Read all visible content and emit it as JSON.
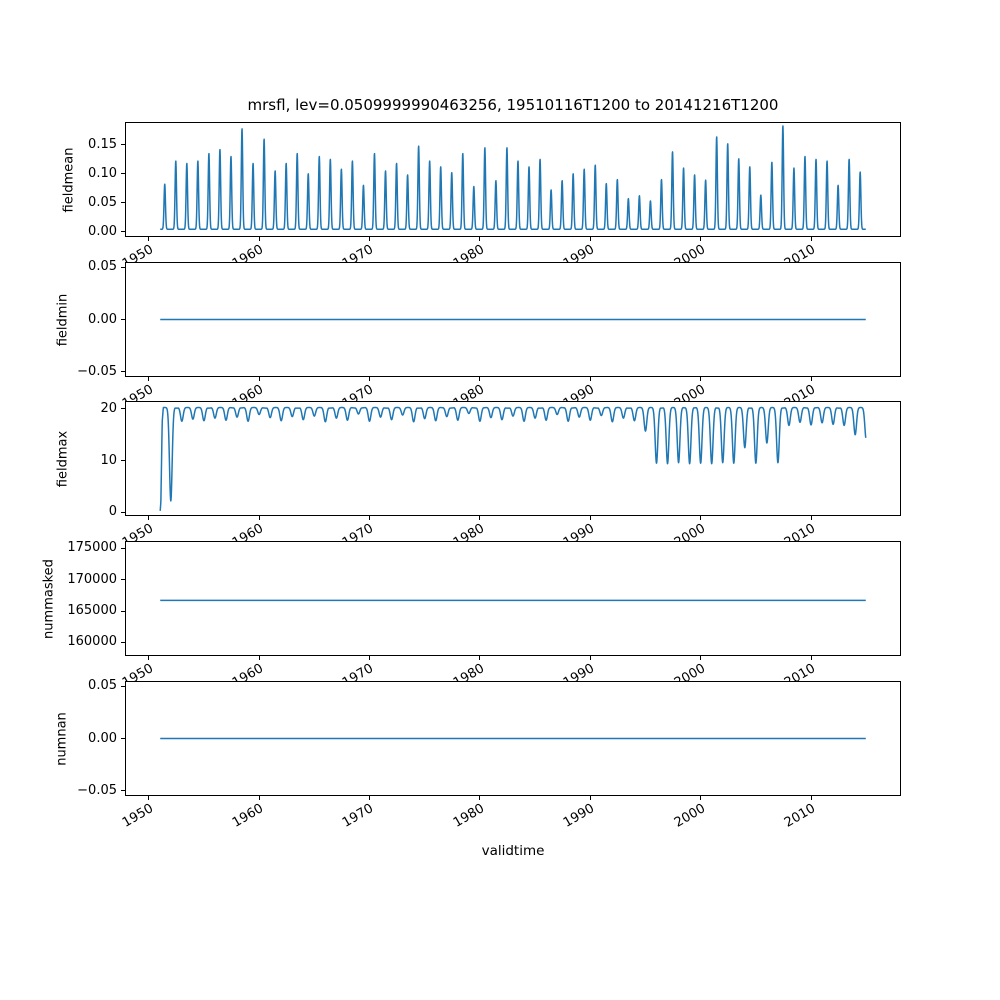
{
  "figure": {
    "title": "mrsfl, lev=0.0509999990463256, 19510116T1200 to 20141216T1200",
    "xlabel": "validtime",
    "line_color": "#1f77b4",
    "axis_color": "#000000",
    "background_color": "#ffffff"
  },
  "x_axis": {
    "label": "validtime",
    "ticks": [
      1950,
      1960,
      1970,
      1980,
      1990,
      2000,
      2010
    ],
    "tick_labels": [
      "1950",
      "1960",
      "1970",
      "1980",
      "1990",
      "2000",
      "2010"
    ],
    "lim": [
      1947.85,
      2018.15
    ],
    "data_range": [
      1951.04,
      2014.96
    ],
    "tick_rotation_deg": 30
  },
  "chart_data": [
    {
      "id": "fieldmean",
      "type": "line",
      "ylabel": "fieldmean",
      "yticks": [
        0.15,
        0.1,
        0.05,
        0.0
      ],
      "ytick_labels": [
        "0.15",
        "0.10",
        "0.05",
        "0.00"
      ],
      "ylim": [
        -0.0094,
        0.1889
      ],
      "render": "seasonal_peaks",
      "year0": 1951,
      "base": 0.004,
      "peak_center_offset": 0.45,
      "peak_sigma": 0.09,
      "annual_peaks": [
        0.082,
        0.122,
        0.118,
        0.122,
        0.135,
        0.142,
        0.13,
        0.178,
        0.118,
        0.16,
        0.105,
        0.118,
        0.135,
        0.1,
        0.13,
        0.125,
        0.108,
        0.122,
        0.08,
        0.135,
        0.105,
        0.118,
        0.098,
        0.148,
        0.122,
        0.112,
        0.102,
        0.135,
        0.078,
        0.145,
        0.088,
        0.145,
        0.122,
        0.112,
        0.125,
        0.072,
        0.088,
        0.1,
        0.108,
        0.115,
        0.083,
        0.09,
        0.057,
        0.062,
        0.053,
        0.09,
        0.138,
        0.11,
        0.098,
        0.089,
        0.164,
        0.152,
        0.126,
        0.112,
        0.063,
        0.12,
        0.183,
        0.11,
        0.13,
        0.125,
        0.122,
        0.08,
        0.125,
        0.103
      ]
    },
    {
      "id": "fieldmin",
      "type": "line",
      "ylabel": "fieldmin",
      "yticks": [
        0.05,
        0.0,
        -0.05
      ],
      "ytick_labels": [
        "0.05",
        "0.00",
        "−0.05"
      ],
      "ylim": [
        -0.055,
        0.055
      ],
      "render": "constant",
      "value": 0.0
    },
    {
      "id": "fieldmax",
      "type": "line",
      "ylabel": "fieldmax",
      "yticks": [
        20,
        10,
        0
      ],
      "ytick_labels": [
        "20",
        "10",
        "0"
      ],
      "ylim": [
        -0.71,
        21.51
      ],
      "render": "seasonal_dips",
      "year0": 1951,
      "top": 20.25,
      "dip_center_offset": 0.0,
      "dip_sigma": 0.17,
      "start_ramp": [
        [
          1951.04,
          0.3
        ],
        [
          1951.1,
          2.0
        ],
        [
          1951.22,
          17.5
        ],
        [
          1951.32,
          20.2
        ]
      ],
      "annual_mins": [
        null,
        2.2,
        17.6,
        18.0,
        17.7,
        18.2,
        17.8,
        18.4,
        17.6,
        18.9,
        18.3,
        17.7,
        18.5,
        17.9,
        18.6,
        17.5,
        18.2,
        17.8,
        19.0,
        17.6,
        18.4,
        17.9,
        18.8,
        17.5,
        18.1,
        17.7,
        18.5,
        17.8,
        19.1,
        17.6,
        18.3,
        17.9,
        18.6,
        17.6,
        18.2,
        17.8,
        18.9,
        17.6,
        18.4,
        17.8,
        18.7,
        17.5,
        18.2,
        17.7,
        15.7,
        9.5,
        9.4,
        9.6,
        9.4,
        9.5,
        9.4,
        9.6,
        9.5,
        12.5,
        9.5,
        13.4,
        9.6,
        16.8,
        17.4,
        16.9,
        17.3,
        17.0,
        16.8,
        15.0
      ],
      "end_value": 14.6
    },
    {
      "id": "nummasked",
      "type": "line",
      "ylabel": "nummasked",
      "yticks": [
        175000,
        170000,
        165000,
        160000
      ],
      "ytick_labels": [
        "175000",
        "170000",
        "165000",
        "160000"
      ],
      "ylim": [
        157815,
        176185
      ],
      "render": "constant",
      "value": 166700
    },
    {
      "id": "numnan",
      "type": "line",
      "ylabel": "numnan",
      "yticks": [
        0.05,
        0.0,
        -0.05
      ],
      "ytick_labels": [
        "0.05",
        "0.00",
        "−0.05"
      ],
      "ylim": [
        -0.055,
        0.055
      ],
      "render": "constant",
      "value": 0.0
    }
  ]
}
